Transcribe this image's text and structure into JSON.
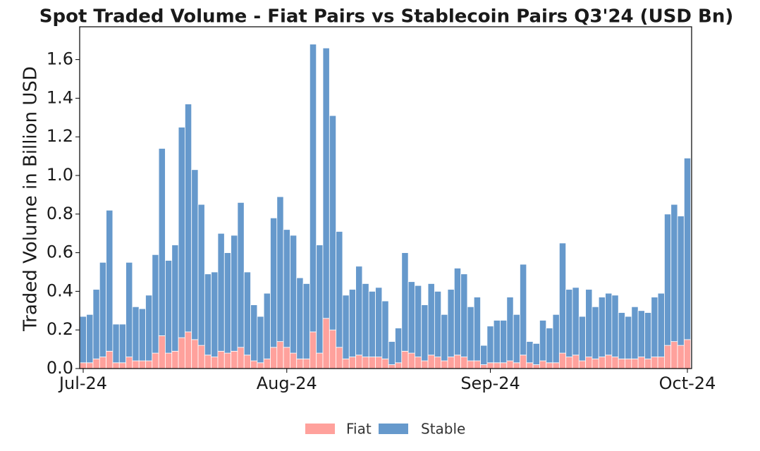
{
  "chart_data": {
    "type": "stacked_bar",
    "title": "Spot Traded Volume - Fiat Pairs vs Stablecoin Pairs Q3'24 (USD Bn)",
    "y_label": "Traded Volume in Billion USD",
    "categories": [
      "Jul-24",
      null,
      null,
      null,
      null,
      null,
      null,
      null,
      null,
      null,
      null,
      null,
      null,
      null,
      null,
      null,
      null,
      null,
      null,
      null,
      null,
      null,
      null,
      null,
      null,
      null,
      null,
      null,
      null,
      null,
      null,
      "Aug-24",
      null,
      null,
      null,
      null,
      null,
      null,
      null,
      null,
      null,
      null,
      null,
      null,
      null,
      null,
      null,
      null,
      null,
      null,
      null,
      null,
      null,
      null,
      null,
      null,
      null,
      null,
      null,
      null,
      null,
      null,
      "Sep-24",
      null,
      null,
      null,
      null,
      null,
      null,
      null,
      null,
      null,
      null,
      null,
      null,
      null,
      null,
      null,
      null,
      null,
      null,
      null,
      null,
      null,
      null,
      null,
      null,
      null,
      null,
      null,
      null,
      null,
      "Oct-24"
    ],
    "series": [
      {
        "name": "Fiat",
        "color": "#ffa19c",
        "values": [
          0.03,
          0.03,
          0.05,
          0.06,
          0.09,
          0.03,
          0.03,
          0.06,
          0.04,
          0.04,
          0.04,
          0.08,
          0.17,
          0.08,
          0.09,
          0.16,
          0.19,
          0.15,
          0.12,
          0.07,
          0.06,
          0.09,
          0.08,
          0.09,
          0.11,
          0.07,
          0.04,
          0.03,
          0.05,
          0.11,
          0.14,
          0.11,
          0.08,
          0.05,
          0.05,
          0.19,
          0.08,
          0.26,
          0.2,
          0.11,
          0.05,
          0.06,
          0.07,
          0.06,
          0.06,
          0.06,
          0.05,
          0.02,
          0.03,
          0.09,
          0.08,
          0.06,
          0.04,
          0.07,
          0.06,
          0.04,
          0.06,
          0.07,
          0.06,
          0.04,
          0.04,
          0.02,
          0.03,
          0.03,
          0.03,
          0.04,
          0.03,
          0.07,
          0.03,
          0.02,
          0.04,
          0.03,
          0.03,
          0.08,
          0.06,
          0.07,
          0.04,
          0.06,
          0.05,
          0.06,
          0.07,
          0.06,
          0.05,
          0.05,
          0.05,
          0.06,
          0.05,
          0.06,
          0.06,
          0.12,
          0.14,
          0.12,
          0.15
        ]
      },
      {
        "name": "Stable",
        "color": "#6699cc",
        "values": [
          0.24,
          0.25,
          0.36,
          0.49,
          0.73,
          0.2,
          0.2,
          0.49,
          0.28,
          0.27,
          0.34,
          0.51,
          0.97,
          0.48,
          0.55,
          1.09,
          1.18,
          0.88,
          0.73,
          0.42,
          0.44,
          0.61,
          0.52,
          0.6,
          0.75,
          0.43,
          0.29,
          0.24,
          0.34,
          0.67,
          0.75,
          0.61,
          0.61,
          0.42,
          0.39,
          1.49,
          0.56,
          1.4,
          1.11,
          0.6,
          0.33,
          0.35,
          0.46,
          0.38,
          0.34,
          0.36,
          0.3,
          0.12,
          0.18,
          0.51,
          0.37,
          0.37,
          0.29,
          0.37,
          0.34,
          0.24,
          0.35,
          0.45,
          0.43,
          0.28,
          0.33,
          0.1,
          0.19,
          0.22,
          0.22,
          0.33,
          0.25,
          0.47,
          0.11,
          0.11,
          0.21,
          0.18,
          0.25,
          0.57,
          0.35,
          0.35,
          0.23,
          0.35,
          0.27,
          0.31,
          0.32,
          0.32,
          0.24,
          0.22,
          0.27,
          0.24,
          0.24,
          0.31,
          0.33,
          0.68,
          0.71,
          0.67,
          0.94
        ]
      }
    ],
    "ylim": [
      0,
      1.77
    ],
    "yticks": [
      {
        "value": 0,
        "label": "0.0"
      },
      0.2,
      0.4,
      0.6,
      0.8,
      {
        "value": 1,
        "label": "1.0"
      },
      1.2,
      1.4,
      1.6
    ],
    "grid": false,
    "legend": "bottom"
  }
}
